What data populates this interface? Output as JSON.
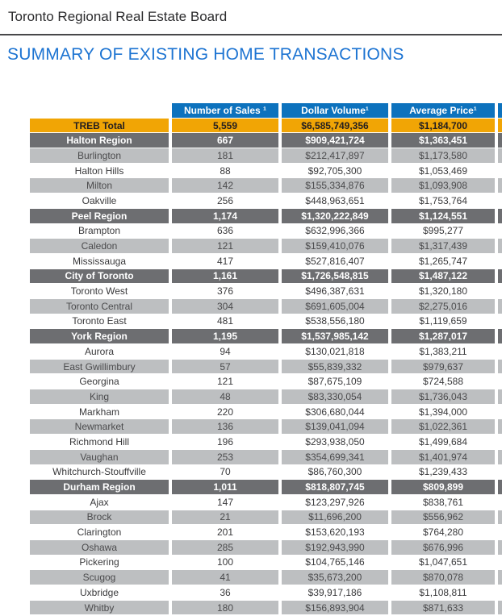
{
  "header": {
    "board_name": "Toronto Regional Real Estate Board",
    "page_title": "SUMMARY OF EXISTING HOME TRANSACTIONS"
  },
  "colors": {
    "header_blue": "#0d72bd",
    "total_orange": "#f1a505",
    "region_gray": "#6d6e71",
    "alt_row_gray": "#bdbfc1",
    "title_blue": "#1d74d2"
  },
  "table": {
    "columns": [
      {
        "key": "name",
        "label": ""
      },
      {
        "key": "sales",
        "label": "Number of Sales ¹"
      },
      {
        "key": "volume",
        "label": "Dollar Volume¹"
      },
      {
        "key": "price",
        "label": "Average Price¹"
      }
    ],
    "rows": [
      {
        "name": "TREB Total",
        "variant": "total",
        "sales": "5,559",
        "volume": "$6,585,749,356",
        "price": "$1,184,700"
      },
      {
        "name": "Halton Region",
        "variant": "region",
        "sales": "667",
        "volume": "$909,421,724",
        "price": "$1,363,451"
      },
      {
        "name": "Burlington",
        "variant": "gray",
        "sales": "181",
        "volume": "$212,417,897",
        "price": "$1,173,580"
      },
      {
        "name": "Halton Hills",
        "variant": "white",
        "sales": "88",
        "volume": "$92,705,300",
        "price": "$1,053,469"
      },
      {
        "name": "Milton",
        "variant": "gray",
        "sales": "142",
        "volume": "$155,334,876",
        "price": "$1,093,908"
      },
      {
        "name": "Oakville",
        "variant": "white",
        "sales": "256",
        "volume": "$448,963,651",
        "price": "$1,753,764"
      },
      {
        "name": "Peel Region",
        "variant": "region",
        "sales": "1,174",
        "volume": "$1,320,222,849",
        "price": "$1,124,551"
      },
      {
        "name": "Brampton",
        "variant": "white",
        "sales": "636",
        "volume": "$632,996,366",
        "price": "$995,277"
      },
      {
        "name": "Caledon",
        "variant": "gray",
        "sales": "121",
        "volume": "$159,410,076",
        "price": "$1,317,439"
      },
      {
        "name": "Mississauga",
        "variant": "white",
        "sales": "417",
        "volume": "$527,816,407",
        "price": "$1,265,747"
      },
      {
        "name": "City of Toronto",
        "variant": "region",
        "sales": "1,161",
        "volume": "$1,726,548,815",
        "price": "$1,487,122"
      },
      {
        "name": "Toronto West",
        "variant": "white",
        "sales": "376",
        "volume": "$496,387,631",
        "price": "$1,320,180"
      },
      {
        "name": "Toronto Central",
        "variant": "gray",
        "sales": "304",
        "volume": "$691,605,004",
        "price": "$2,275,016"
      },
      {
        "name": "Toronto East",
        "variant": "white",
        "sales": "481",
        "volume": "$538,556,180",
        "price": "$1,119,659"
      },
      {
        "name": "York Region",
        "variant": "region",
        "sales": "1,195",
        "volume": "$1,537,985,142",
        "price": "$1,287,017"
      },
      {
        "name": "Aurora",
        "variant": "white",
        "sales": "94",
        "volume": "$130,021,818",
        "price": "$1,383,211"
      },
      {
        "name": "East Gwillimbury",
        "variant": "gray",
        "sales": "57",
        "volume": "$55,839,332",
        "price": "$979,637"
      },
      {
        "name": "Georgina",
        "variant": "white",
        "sales": "121",
        "volume": "$87,675,109",
        "price": "$724,588"
      },
      {
        "name": "King",
        "variant": "gray",
        "sales": "48",
        "volume": "$83,330,054",
        "price": "$1,736,043"
      },
      {
        "name": "Markham",
        "variant": "white",
        "sales": "220",
        "volume": "$306,680,044",
        "price": "$1,394,000"
      },
      {
        "name": "Newmarket",
        "variant": "gray",
        "sales": "136",
        "volume": "$139,041,094",
        "price": "$1,022,361"
      },
      {
        "name": "Richmond Hill",
        "variant": "white",
        "sales": "196",
        "volume": "$293,938,050",
        "price": "$1,499,684"
      },
      {
        "name": "Vaughan",
        "variant": "gray",
        "sales": "253",
        "volume": "$354,699,341",
        "price": "$1,401,974"
      },
      {
        "name": "Whitchurch-Stouffville",
        "variant": "white",
        "sales": "70",
        "volume": "$86,760,300",
        "price": "$1,239,433"
      },
      {
        "name": "Durham Region",
        "variant": "region",
        "sales": "1,011",
        "volume": "$818,807,745",
        "price": "$809,899"
      },
      {
        "name": "Ajax",
        "variant": "white",
        "sales": "147",
        "volume": "$123,297,926",
        "price": "$838,761"
      },
      {
        "name": "Brock",
        "variant": "gray",
        "sales": "21",
        "volume": "$11,696,200",
        "price": "$556,962"
      },
      {
        "name": "Clarington",
        "variant": "white",
        "sales": "201",
        "volume": "$153,620,193",
        "price": "$764,280"
      },
      {
        "name": "Oshawa",
        "variant": "gray",
        "sales": "285",
        "volume": "$192,943,990",
        "price": "$676,996"
      },
      {
        "name": "Pickering",
        "variant": "white",
        "sales": "100",
        "volume": "$104,765,146",
        "price": "$1,047,651"
      },
      {
        "name": "Scugog",
        "variant": "gray",
        "sales": "41",
        "volume": "$35,673,200",
        "price": "$870,078"
      },
      {
        "name": "Uxbridge",
        "variant": "white",
        "sales": "36",
        "volume": "$39,917,186",
        "price": "$1,108,811"
      },
      {
        "name": "Whitby",
        "variant": "gray",
        "sales": "180",
        "volume": "$156,893,904",
        "price": "$871,633"
      }
    ]
  }
}
